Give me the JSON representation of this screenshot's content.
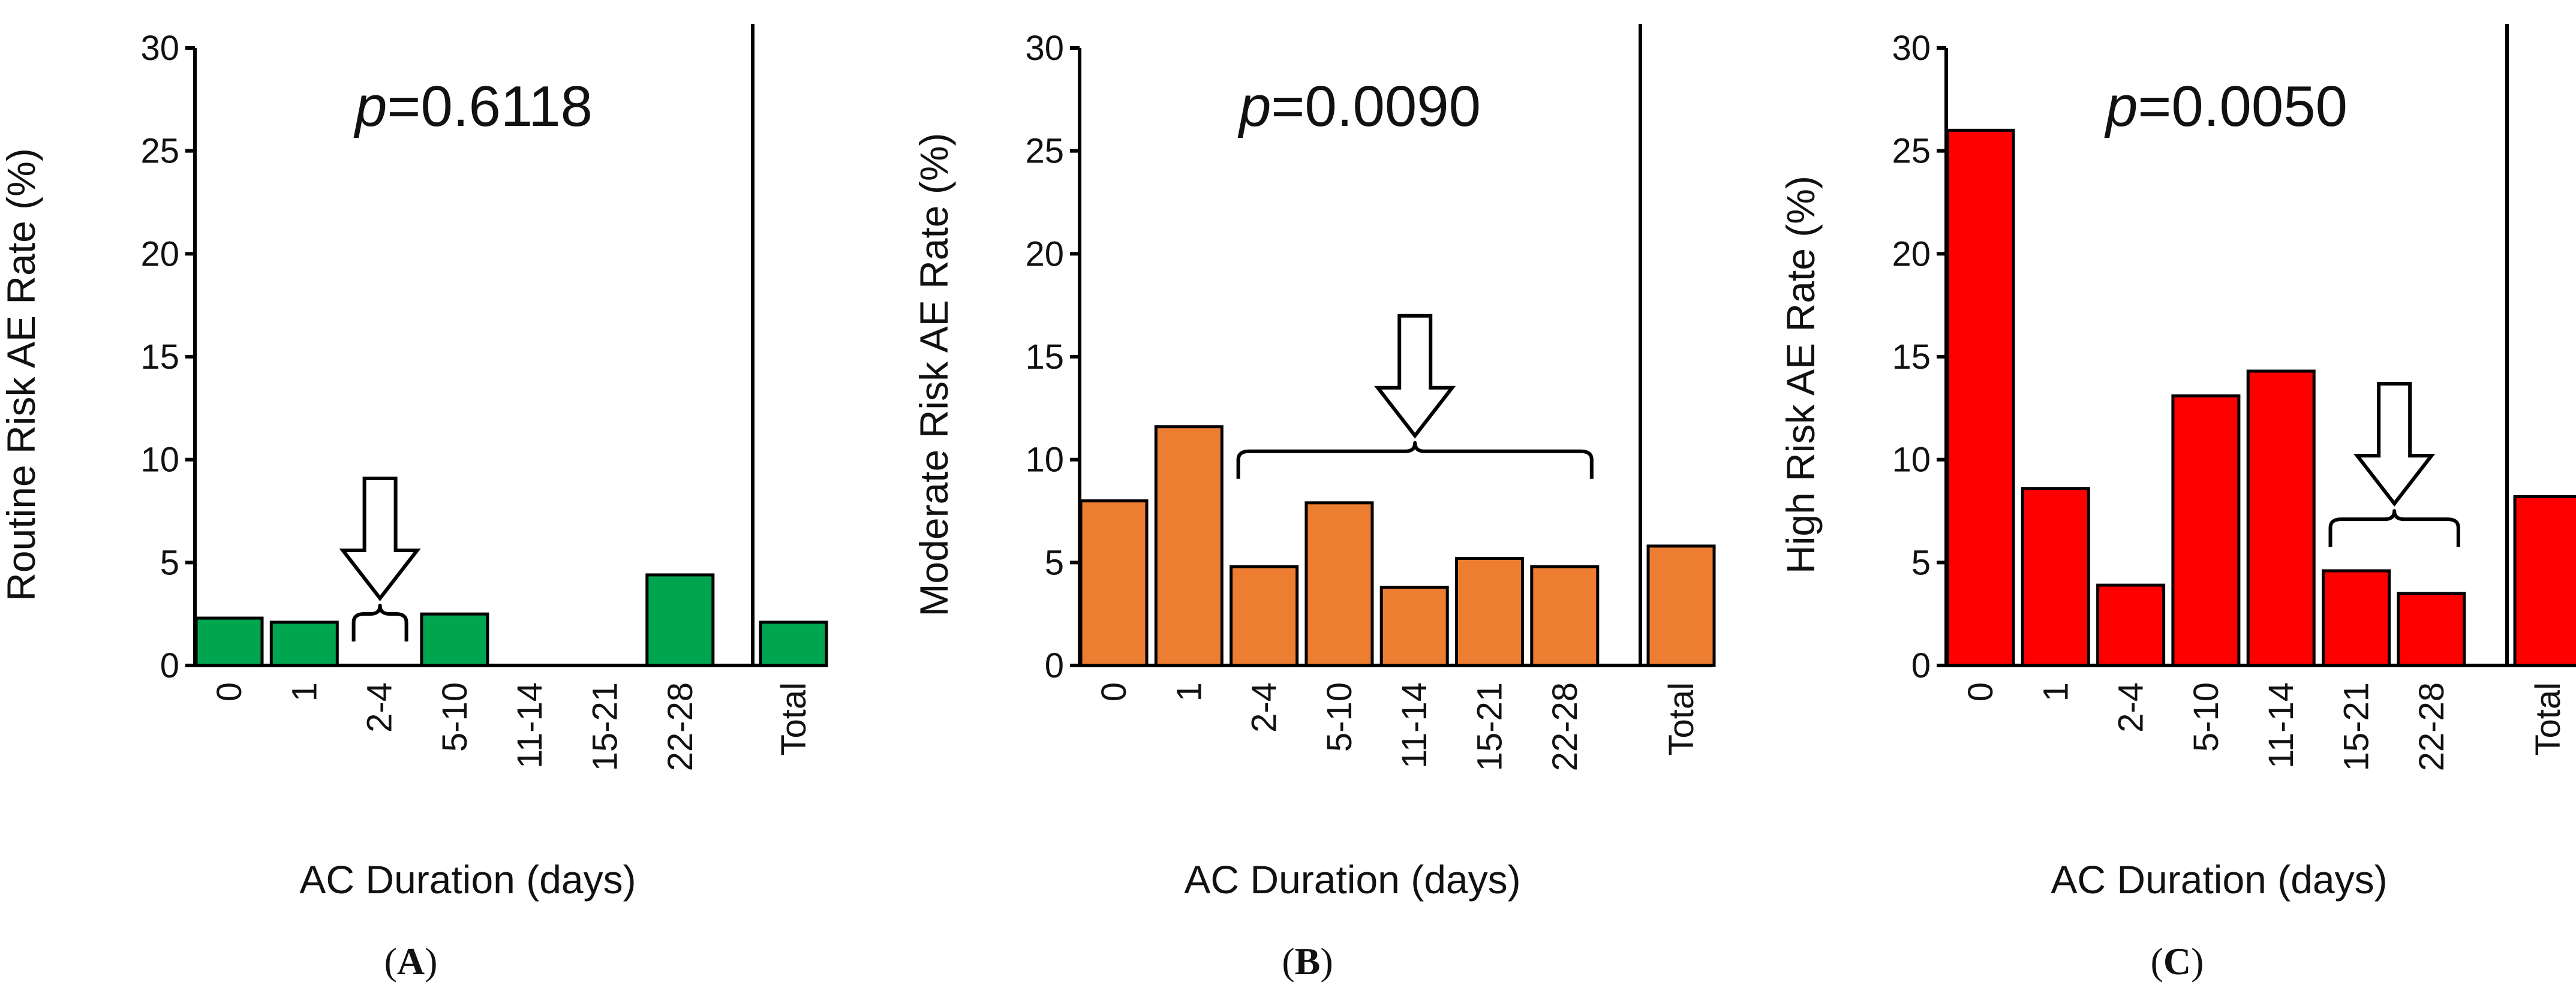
{
  "chart_data": [
    {
      "type": "bar",
      "panel": "A",
      "caption_letter": "A",
      "caption_open": "(",
      "caption_close": ")",
      "p_symbol": "p",
      "p_value": "=0.6118",
      "ylabel": "Routine Risk AE Rate (%)",
      "xlabel": "AC Duration (days)",
      "ylim": [
        0,
        30
      ],
      "yticks": [
        "0",
        "5",
        "10",
        "15",
        "20",
        "25",
        "30"
      ],
      "categories": [
        "0",
        "1",
        "2-4",
        "5-10",
        "11-14",
        "15-21",
        "22-28",
        "Total"
      ],
      "values": [
        2.3,
        2.1,
        0,
        2.5,
        0,
        0,
        4.4,
        2.1
      ],
      "bar_color": "#00A550",
      "bracket_categories": [
        "2-4"
      ]
    },
    {
      "type": "bar",
      "panel": "B",
      "caption_letter": "B",
      "caption_open": "(",
      "caption_close": ")",
      "p_symbol": "p",
      "p_value": "=0.0090",
      "ylabel": "Moderate Risk AE Rate (%)",
      "xlabel": "AC Duration (days)",
      "ylim": [
        0,
        30
      ],
      "yticks": [
        "0",
        "5",
        "10",
        "15",
        "20",
        "25",
        "30"
      ],
      "categories": [
        "0",
        "1",
        "2-4",
        "5-10",
        "11-14",
        "15-21",
        "22-28",
        "Total"
      ],
      "values": [
        8.0,
        11.6,
        4.8,
        7.9,
        3.8,
        5.2,
        4.8,
        5.8
      ],
      "bar_color": "#ED7D31",
      "bracket_categories": [
        "2-4",
        "5-10",
        "11-14",
        "15-21",
        "22-28"
      ]
    },
    {
      "type": "bar",
      "panel": "C",
      "caption_letter": "C",
      "caption_open": "(",
      "caption_close": ")",
      "p_symbol": "p",
      "p_value": "=0.0050",
      "ylabel": "High Risk AE Rate (%)",
      "xlabel": "AC Duration (days)",
      "ylim": [
        0,
        30
      ],
      "yticks": [
        "0",
        "5",
        "10",
        "15",
        "20",
        "25",
        "30"
      ],
      "categories": [
        "0",
        "1",
        "2-4",
        "5-10",
        "11-14",
        "15-21",
        "22-28",
        "Total"
      ],
      "values": [
        26.0,
        8.6,
        3.9,
        13.1,
        14.3,
        4.6,
        3.5,
        8.2
      ],
      "bar_color": "#FF0000",
      "bracket_categories": [
        "15-21",
        "22-28"
      ]
    }
  ]
}
